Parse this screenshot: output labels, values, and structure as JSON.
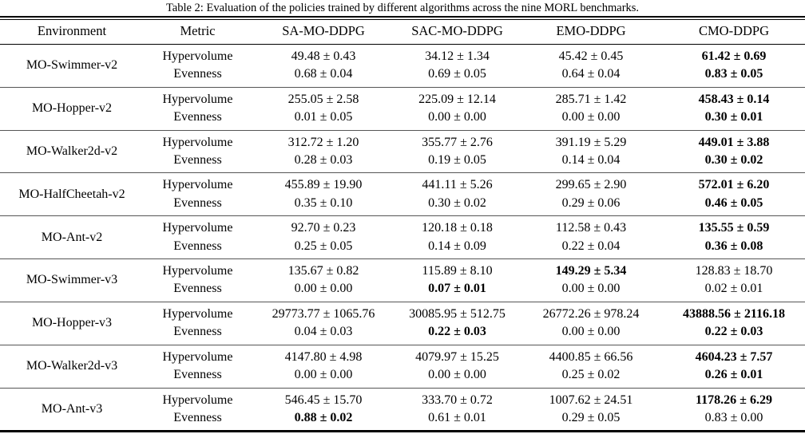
{
  "figure": {
    "caption": "Table 2: Evaluation of the policies trained by different algorithms across the nine MORL benchmarks."
  },
  "table": {
    "columns": [
      "Environment",
      "Metric",
      "SA-MO-DDPG",
      "SAC-MO-DDPG",
      "EMO-DDPG",
      "CMO-DDPG"
    ],
    "metric_labels": [
      "Hypervolume",
      "Evenness"
    ],
    "rows": [
      {
        "environment": "MO-Swimmer-v2",
        "hypervolume": [
          "49.48 ± 0.43",
          "34.12 ± 1.34",
          "45.42 ± 0.45",
          "61.42 ± 0.69"
        ],
        "hypervolume_bold": [
          false,
          false,
          false,
          true
        ],
        "evenness": [
          "0.68 ± 0.04",
          "0.69 ± 0.05",
          "0.64 ± 0.04",
          "0.83 ± 0.05"
        ],
        "evenness_bold": [
          false,
          false,
          false,
          true
        ]
      },
      {
        "environment": "MO-Hopper-v2",
        "hypervolume": [
          "255.05 ± 2.58",
          "225.09 ± 12.14",
          "285.71 ± 1.42",
          "458.43 ± 0.14"
        ],
        "hypervolume_bold": [
          false,
          false,
          false,
          true
        ],
        "evenness": [
          "0.01 ± 0.05",
          "0.00 ± 0.00",
          "0.00 ± 0.00",
          "0.30 ± 0.01"
        ],
        "evenness_bold": [
          false,
          false,
          false,
          true
        ]
      },
      {
        "environment": "MO-Walker2d-v2",
        "hypervolume": [
          "312.72 ± 1.20",
          "355.77 ± 2.76",
          "391.19 ± 5.29",
          "449.01 ± 3.88"
        ],
        "hypervolume_bold": [
          false,
          false,
          false,
          true
        ],
        "evenness": [
          "0.28 ± 0.03",
          "0.19 ± 0.05",
          "0.14 ± 0.04",
          "0.30 ± 0.02"
        ],
        "evenness_bold": [
          false,
          false,
          false,
          true
        ]
      },
      {
        "environment": "MO-HalfCheetah-v2",
        "hypervolume": [
          "455.89 ± 19.90",
          "441.11 ± 5.26",
          "299.65 ± 2.90",
          "572.01 ± 6.20"
        ],
        "hypervolume_bold": [
          false,
          false,
          false,
          true
        ],
        "evenness": [
          "0.35 ± 0.10",
          "0.30 ± 0.02",
          "0.29 ± 0.06",
          "0.46 ± 0.05"
        ],
        "evenness_bold": [
          false,
          false,
          false,
          true
        ]
      },
      {
        "environment": "MO-Ant-v2",
        "hypervolume": [
          "92.70 ± 0.23",
          "120.18 ± 0.18",
          "112.58 ± 0.43",
          "135.55 ± 0.59"
        ],
        "hypervolume_bold": [
          false,
          false,
          false,
          true
        ],
        "evenness": [
          "0.25 ± 0.05",
          "0.14 ± 0.09",
          "0.22 ± 0.04",
          "0.36 ± 0.08"
        ],
        "evenness_bold": [
          false,
          false,
          false,
          true
        ]
      },
      {
        "environment": "MO-Swimmer-v3",
        "hypervolume": [
          "135.67 ± 0.82",
          "115.89 ± 8.10",
          "149.29 ± 5.34",
          "128.83 ± 18.70"
        ],
        "hypervolume_bold": [
          false,
          false,
          true,
          false
        ],
        "evenness": [
          "0.00 ± 0.00",
          "0.07 ± 0.01",
          "0.00 ± 0.00",
          "0.02 ± 0.01"
        ],
        "evenness_bold": [
          false,
          true,
          false,
          false
        ]
      },
      {
        "environment": "MO-Hopper-v3",
        "hypervolume": [
          "29773.77 ± 1065.76",
          "30085.95 ± 512.75",
          "26772.26 ± 978.24",
          "43888.56 ± 2116.18"
        ],
        "hypervolume_bold": [
          false,
          false,
          false,
          true
        ],
        "evenness": [
          "0.04 ± 0.03",
          "0.22 ± 0.03",
          "0.00 ± 0.00",
          "0.22 ± 0.03"
        ],
        "evenness_bold": [
          false,
          true,
          false,
          true
        ]
      },
      {
        "environment": "MO-Walker2d-v3",
        "hypervolume": [
          "4147.80 ± 4.98",
          "4079.97 ± 15.25",
          "4400.85 ± 66.56",
          "4604.23 ± 7.57"
        ],
        "hypervolume_bold": [
          false,
          false,
          false,
          true
        ],
        "evenness": [
          "0.00 ± 0.00",
          "0.00 ± 0.00",
          "0.25 ± 0.02",
          "0.26 ± 0.01"
        ],
        "evenness_bold": [
          false,
          false,
          false,
          true
        ]
      },
      {
        "environment": "MO-Ant-v3",
        "hypervolume": [
          "546.45 ± 15.70",
          "333.70 ± 0.72",
          "1007.62 ± 24.51",
          "1178.26 ± 6.29"
        ],
        "hypervolume_bold": [
          false,
          false,
          false,
          true
        ],
        "evenness": [
          "0.88 ± 0.02",
          "0.61 ± 0.01",
          "0.29 ± 0.05",
          "0.83 ± 0.00"
        ],
        "evenness_bold": [
          true,
          false,
          false,
          false
        ]
      }
    ]
  }
}
